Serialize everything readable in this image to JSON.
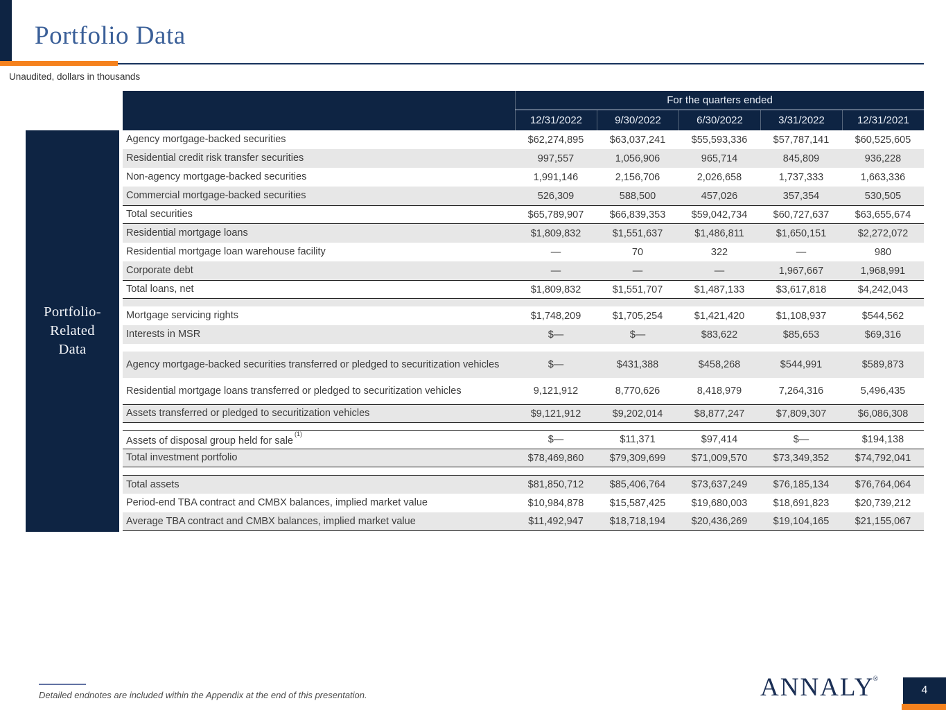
{
  "slide": {
    "title": "Portfolio Data",
    "subtitle": "Unaudited, dollars in thousands",
    "sidebar_label_lines": [
      "Portfolio-",
      "Related",
      "Data"
    ],
    "footnote": "Detailed endnotes are included within the Appendix at the end of this presentation.",
    "logo_text": "ANNALY",
    "logo_mark": "®",
    "page_number": "4"
  },
  "colors": {
    "navy": "#0e2443",
    "orange": "#f5821e",
    "title_blue": "#3a5f98",
    "row_stripe": "#e7e7e7",
    "row_border": "#242424",
    "text": "#3c3c3c"
  },
  "table": {
    "header_group": "For the quarters ended",
    "columns": [
      "12/31/2022",
      "9/30/2022",
      "6/30/2022",
      "3/31/2022",
      "12/31/2021"
    ],
    "rows": [
      {
        "label": "Agency mortgage-backed securities",
        "values": [
          "$62,274,895",
          "$63,037,241",
          "$55,593,336",
          "$57,787,141",
          "$60,525,605"
        ],
        "shaded": false
      },
      {
        "label": "Residential credit risk transfer securities",
        "values": [
          "997,557",
          "1,056,906",
          "965,714",
          "845,809",
          "936,228"
        ],
        "shaded": true
      },
      {
        "label": "Non-agency mortgage-backed securities",
        "values": [
          "1,991,146",
          "2,156,706",
          "2,026,658",
          "1,737,333",
          "1,663,336"
        ],
        "shaded": false
      },
      {
        "label": "Commercial mortgage-backed securities",
        "values": [
          "526,309",
          "588,500",
          "457,026",
          "357,354",
          "530,505"
        ],
        "shaded": true
      },
      {
        "label": "Total securities",
        "values": [
          "$65,789,907",
          "$66,839,353",
          "$59,042,734",
          "$60,727,637",
          "$63,655,674"
        ],
        "shaded": false,
        "bt": true,
        "bb": true
      },
      {
        "label": "Residential mortgage loans",
        "values": [
          "$1,809,832",
          "$1,551,637",
          "$1,486,811",
          "$1,650,151",
          "$2,272,072"
        ],
        "shaded": true
      },
      {
        "label": "Residential mortgage loan warehouse facility",
        "values": [
          "—",
          "70",
          "322",
          "—",
          "980"
        ],
        "shaded": false
      },
      {
        "label": "Corporate debt",
        "values": [
          "—",
          "—",
          "—",
          "1,967,667",
          "1,968,991"
        ],
        "shaded": true
      },
      {
        "label": "Total loans, net",
        "values": [
          "$1,809,832",
          "$1,551,707",
          "$1,487,133",
          "$3,617,818",
          "$4,242,043"
        ],
        "shaded": false,
        "bt": true,
        "bb": true
      },
      {
        "spacer": true,
        "h": 11,
        "shaded": true
      },
      {
        "label": "Mortgage servicing rights",
        "values": [
          "$1,748,209",
          "$1,705,254",
          "$1,421,420",
          "$1,108,937",
          "$544,562"
        ],
        "shaded": false
      },
      {
        "label": "Interests in MSR",
        "values": [
          "$—",
          "$—",
          "$83,622",
          "$85,653",
          "$69,316"
        ],
        "shaded": true
      },
      {
        "spacer": true,
        "h": 11,
        "shaded": false
      },
      {
        "label": "Agency mortgage-backed securities transferred or pledged to securitization vehicles",
        "values": [
          "$—",
          "$431,388",
          "$458,268",
          "$544,991",
          "$589,873"
        ],
        "shaded": true,
        "tall": true
      },
      {
        "label": "Residential mortgage loans transferred or pledged to securitization vehicles",
        "values": [
          "9,121,912",
          "8,770,626",
          "8,418,979",
          "7,264,316",
          "5,496,435"
        ],
        "shaded": false,
        "tall": true
      },
      {
        "label": "Assets transferred or pledged to securitization vehicles",
        "values": [
          "$9,121,912",
          "$9,202,014",
          "$8,877,247",
          "$7,809,307",
          "$6,086,308"
        ],
        "shaded": true,
        "bt": true,
        "bb": true
      },
      {
        "spacer": true,
        "h": 10,
        "shaded": false
      },
      {
        "label": "Assets of disposal group held for sale",
        "sup": "(1)",
        "values": [
          "$—",
          "$11,371",
          "$97,414",
          "$—",
          "$194,138"
        ],
        "shaded": false,
        "bt": true
      },
      {
        "label": "Total investment portfolio",
        "values": [
          "$78,469,860",
          "$79,309,699",
          "$71,009,570",
          "$73,349,352",
          "$74,792,041"
        ],
        "shaded": true,
        "bt": true,
        "bb": true
      },
      {
        "spacer": true,
        "h": 11,
        "shaded": false
      },
      {
        "label": "Total assets",
        "values": [
          "$81,850,712",
          "$85,406,764",
          "$73,637,249",
          "$76,185,134",
          "$76,764,064"
        ],
        "shaded": true,
        "bt": true
      },
      {
        "label": "Period-end TBA contract and CMBX balances, implied market value",
        "values": [
          "$10,984,878",
          "$15,587,425",
          "$19,680,003",
          "$18,691,823",
          "$20,739,212"
        ],
        "shaded": false
      },
      {
        "label": "Average TBA contract and CMBX balances, implied market value",
        "values": [
          "$11,492,947",
          "$18,718,194",
          "$20,436,269",
          "$19,104,165",
          "$21,155,067"
        ],
        "shaded": true,
        "bb": true
      }
    ]
  }
}
